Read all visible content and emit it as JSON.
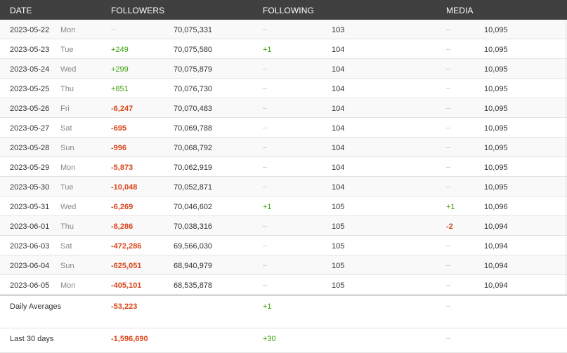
{
  "headers": {
    "date": "DATE",
    "followers": "FOLLOWERS",
    "following": "FOLLOWING",
    "media": "MEDIA"
  },
  "rows": [
    {
      "date": "2023-05-22",
      "dow": "Mon",
      "f_delta": "--",
      "f_total": "70,075,331",
      "g_delta": "--",
      "g_total": "103",
      "m_delta": "--",
      "m_total": "10,095"
    },
    {
      "date": "2023-05-23",
      "dow": "Tue",
      "f_delta": "+249",
      "f_total": "70,075,580",
      "g_delta": "+1",
      "g_total": "104",
      "m_delta": "--",
      "m_total": "10,095"
    },
    {
      "date": "2023-05-24",
      "dow": "Wed",
      "f_delta": "+299",
      "f_total": "70,075,879",
      "g_delta": "--",
      "g_total": "104",
      "m_delta": "--",
      "m_total": "10,095"
    },
    {
      "date": "2023-05-25",
      "dow": "Thu",
      "f_delta": "+851",
      "f_total": "70,076,730",
      "g_delta": "--",
      "g_total": "104",
      "m_delta": "--",
      "m_total": "10,095"
    },
    {
      "date": "2023-05-26",
      "dow": "Fri",
      "f_delta": "-6,247",
      "f_total": "70,070,483",
      "g_delta": "--",
      "g_total": "104",
      "m_delta": "--",
      "m_total": "10,095"
    },
    {
      "date": "2023-05-27",
      "dow": "Sat",
      "f_delta": "-695",
      "f_total": "70,069,788",
      "g_delta": "--",
      "g_total": "104",
      "m_delta": "--",
      "m_total": "10,095"
    },
    {
      "date": "2023-05-28",
      "dow": "Sun",
      "f_delta": "-996",
      "f_total": "70,068,792",
      "g_delta": "--",
      "g_total": "104",
      "m_delta": "--",
      "m_total": "10,095"
    },
    {
      "date": "2023-05-29",
      "dow": "Mon",
      "f_delta": "-5,873",
      "f_total": "70,062,919",
      "g_delta": "--",
      "g_total": "104",
      "m_delta": "--",
      "m_total": "10,095"
    },
    {
      "date": "2023-05-30",
      "dow": "Tue",
      "f_delta": "-10,048",
      "f_total": "70,052,871",
      "g_delta": "--",
      "g_total": "104",
      "m_delta": "--",
      "m_total": "10,095"
    },
    {
      "date": "2023-05-31",
      "dow": "Wed",
      "f_delta": "-6,269",
      "f_total": "70,046,602",
      "g_delta": "+1",
      "g_total": "105",
      "m_delta": "+1",
      "m_total": "10,096"
    },
    {
      "date": "2023-06-01",
      "dow": "Thu",
      "f_delta": "-8,286",
      "f_total": "70,038,316",
      "g_delta": "--",
      "g_total": "105",
      "m_delta": "-2",
      "m_total": "10,094"
    },
    {
      "date": "2023-06-03",
      "dow": "Sat",
      "f_delta": "-472,286",
      "f_total": "69,566,030",
      "g_delta": "--",
      "g_total": "105",
      "m_delta": "--",
      "m_total": "10,094"
    },
    {
      "date": "2023-06-04",
      "dow": "Sun",
      "f_delta": "-625,051",
      "f_total": "68,940,979",
      "g_delta": "--",
      "g_total": "105",
      "m_delta": "--",
      "m_total": "10,094"
    },
    {
      "date": "2023-06-05",
      "dow": "Mon",
      "f_delta": "-405,101",
      "f_total": "68,535,878",
      "g_delta": "--",
      "g_total": "105",
      "m_delta": "--",
      "m_total": "10,094"
    }
  ],
  "summary": [
    {
      "label": "Daily Averages",
      "followers": "-53,223",
      "following": "+1",
      "media": "--"
    },
    {
      "label": "Last 30 days",
      "followers": "-1,596,690",
      "following": "+30",
      "media": "--"
    }
  ],
  "colors": {
    "header_bg": "#404040",
    "positive": "#3aa10a",
    "negative": "#d9461c"
  }
}
